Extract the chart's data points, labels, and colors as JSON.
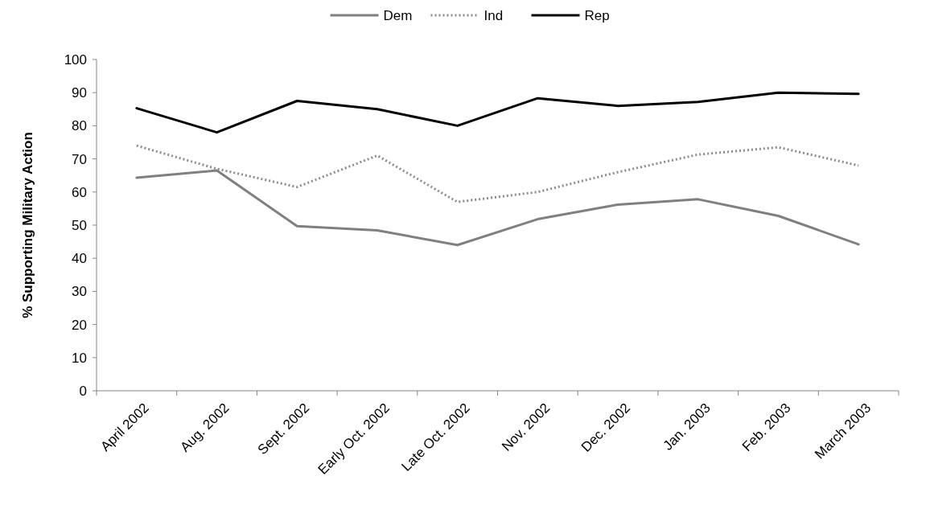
{
  "chart_data": {
    "type": "line",
    "ylabel": "% Supporting Military Action",
    "categories": [
      "April 2002",
      "Aug. 2002",
      "Sept. 2002",
      "Early Oct. 2002",
      "Late Oct. 2002",
      "Nov. 2002",
      "Dec. 2002",
      "Jan. 2003",
      "Feb. 2003",
      "March 2003"
    ],
    "series": [
      {
        "name": "Dem",
        "color": "#808080",
        "line_style": "solid",
        "values": [
          64.3,
          66.5,
          49.7,
          48.4,
          44,
          51.8,
          56.2,
          57.8,
          52.8,
          44.2
        ]
      },
      {
        "name": "Ind",
        "color": "#8c8c8c",
        "line_style": "dotted",
        "values": [
          74,
          67,
          61.5,
          71,
          57,
          60,
          66,
          71.3,
          73.5,
          68
        ]
      },
      {
        "name": "Rep",
        "color": "#000000",
        "line_style": "solid",
        "values": [
          85.3,
          78,
          87.5,
          85,
          80,
          88.3,
          86,
          87.2,
          90,
          89.6
        ]
      }
    ],
    "ylim": [
      0,
      100
    ],
    "yticks": [
      0,
      10,
      20,
      30,
      40,
      50,
      60,
      70,
      80,
      90,
      100
    ],
    "grid": false,
    "legend": "top"
  }
}
